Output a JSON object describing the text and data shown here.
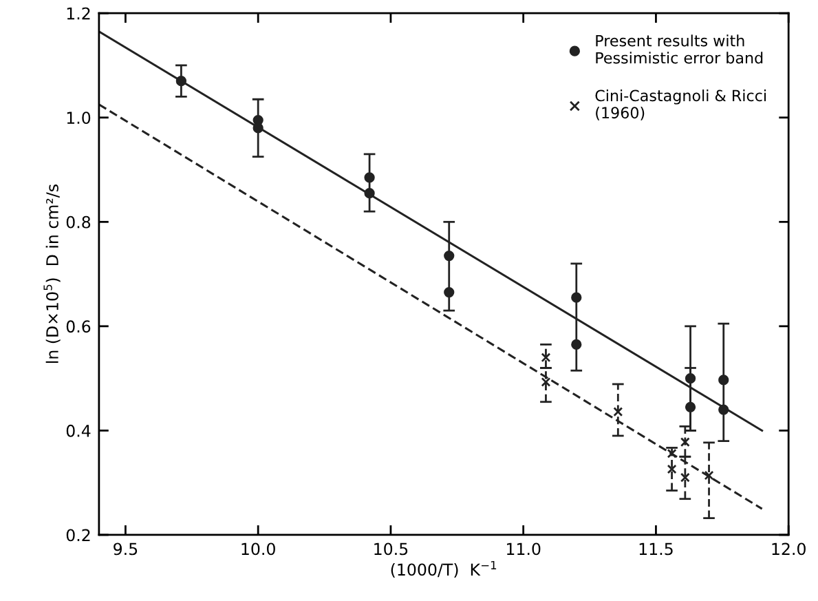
{
  "chart_data": {
    "type": "scatter",
    "xlabel": "(1000/T)  K$^{−1}$",
    "ylabel": "ln (D×10$^{5}$)  D in cm²/s",
    "xlim": [
      9.4,
      12.0
    ],
    "xticks": [
      9.5,
      {
        "value": 10,
        "label": "10.0"
      },
      10.5,
      {
        "value": 11,
        "label": "11.0"
      },
      11.5,
      {
        "value": 12,
        "label": "12.0"
      }
    ],
    "ylim": [
      0.2,
      1.2
    ],
    "yticks": [
      0.2,
      0.4,
      0.6,
      0.8,
      {
        "value": 1,
        "label": "1.0"
      },
      1.2
    ],
    "grid": false,
    "legend": "top right",
    "series": [
      {
        "name": "Present results with\nPessimistic error band",
        "color": "#222222",
        "marker": "circle",
        "line_style": "solid",
        "x": [
          9.71,
          10.0,
          10.0,
          10.42,
          10.42,
          10.72,
          10.72,
          11.2,
          11.2,
          11.63,
          11.63,
          11.755,
          11.755
        ],
        "values": [
          1.07,
          0.995,
          0.98,
          0.885,
          0.855,
          0.735,
          0.665,
          0.655,
          0.565,
          0.5,
          0.445,
          0.497,
          0.44
        ],
        "errors": [
          [
            1.04,
            1.1
          ],
          [
            0.925,
            1.035
          ],
          null,
          [
            0.82,
            0.93
          ],
          null,
          [
            0.63,
            0.8
          ],
          null,
          [
            0.515,
            0.72
          ],
          null,
          [
            0.4,
            0.6
          ],
          [
            0.4,
            0.52
          ],
          [
            0.38,
            0.605
          ],
          null
        ]
      },
      {
        "name": "Cini-Castagnoli & Ricci\n(1960)",
        "color": "#222222",
        "marker": "cross",
        "line_style": "dashed",
        "x": [
          11.085,
          11.085,
          11.357,
          11.56,
          11.56,
          11.61,
          11.61,
          11.7
        ],
        "values": [
          0.54,
          0.493,
          0.436,
          0.326,
          0.356,
          0.378,
          0.31,
          0.314
        ],
        "errors": [
          [
            0.52,
            0.565
          ],
          [
            0.455,
            0.52
          ],
          [
            0.39,
            0.489
          ],
          [
            0.285,
            0.367
          ],
          null,
          [
            0.35,
            0.408
          ],
          [
            0.269,
            0.35
          ],
          [
            0.232,
            0.377
          ]
        ]
      },
      {
        "type": "line",
        "color": "#222222",
        "line_style": "solid",
        "x": [
          9.4,
          11.9
        ],
        "values": [
          1.165,
          0.4
        ]
      },
      {
        "type": "line",
        "color": "#222222",
        "line_style": "dashed",
        "x": [
          9.4,
          11.9
        ],
        "values": [
          1.025,
          0.25
        ]
      }
    ]
  }
}
